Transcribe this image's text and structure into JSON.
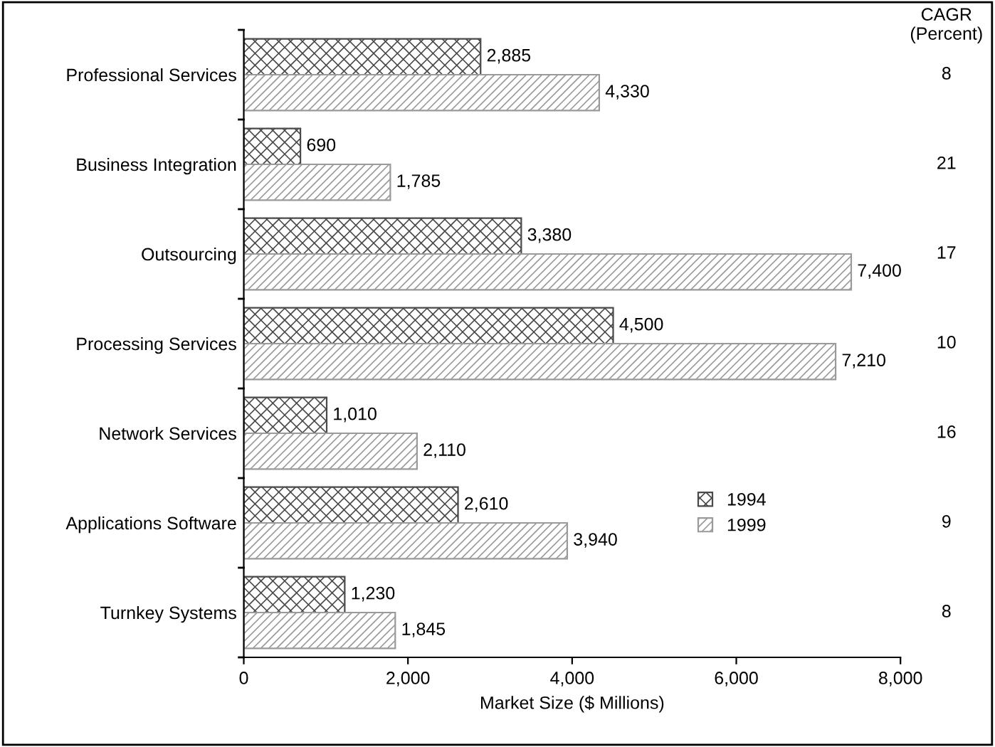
{
  "chart_data": {
    "type": "bar",
    "orientation": "horizontal",
    "xlabel": "Market Size ($ Millions)",
    "categories": [
      "Professional Services",
      "Business Integration",
      "Outsourcing",
      "Processing Services",
      "Network Services",
      "Applications Software",
      "Turnkey Systems"
    ],
    "series": [
      {
        "name": "1994",
        "color": "#4a4a4a",
        "values": [
          2885,
          690,
          3380,
          4500,
          1010,
          2610,
          1230
        ],
        "value_labels": [
          "2,885",
          "690",
          "3,380",
          "4,500",
          "1,010",
          "2,610",
          "1,230"
        ]
      },
      {
        "name": "1999",
        "color": "#9a9a9a",
        "values": [
          4330,
          1785,
          7400,
          7210,
          2110,
          3940,
          1845
        ],
        "value_labels": [
          "4,330",
          "1,785",
          "7,400",
          "7,210",
          "2,110",
          "3,940",
          "1,845"
        ]
      }
    ],
    "xlim": [
      0,
      8000
    ],
    "xticks": [
      0,
      {
        "value": 2000,
        "label": "2,000"
      },
      {
        "value": 4000,
        "label": "4,000"
      },
      {
        "value": 6000,
        "label": "6,000"
      },
      {
        "value": 8000,
        "label": "8,000"
      }
    ],
    "annotations": [
      "CAGR\n(Percent)",
      "8",
      "21",
      "17",
      "10",
      "16",
      "9",
      "8"
    ],
    "legend": "lower right",
    "grid": false
  }
}
